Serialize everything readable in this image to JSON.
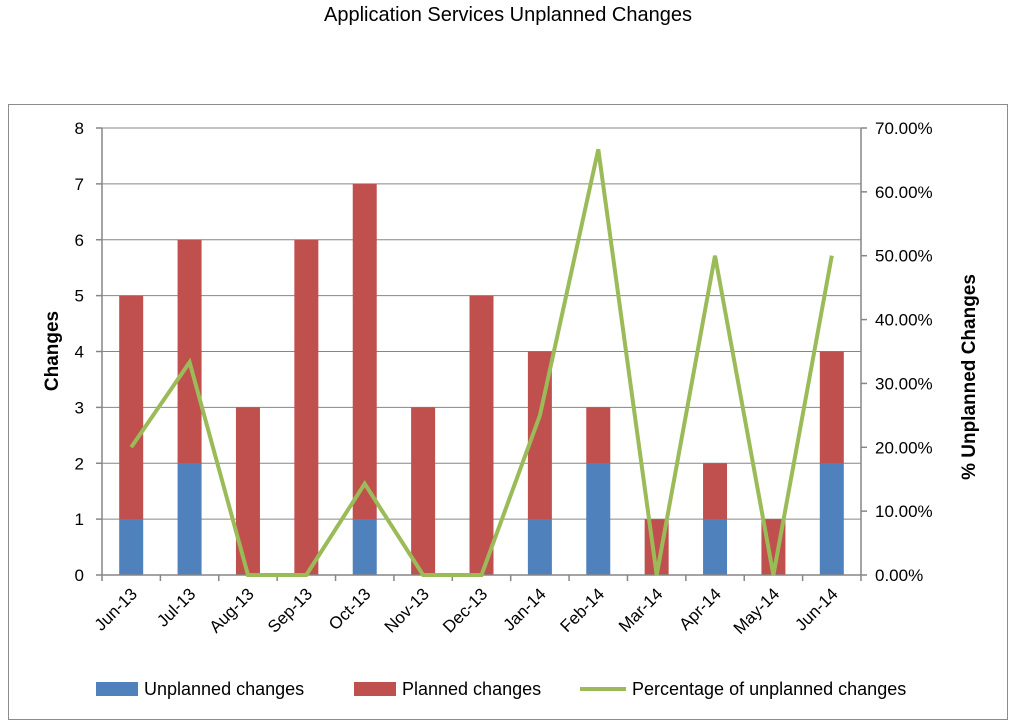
{
  "chart_data": {
    "type": "bar",
    "stacked": true,
    "title": "Application Services Unplanned Changes",
    "xlabel": "",
    "ylabel": "Changes",
    "y2label": "% Unplanned Changes",
    "ylim": [
      0,
      8
    ],
    "y2lim": [
      0,
      0.7
    ],
    "yticks": [
      "0",
      "1",
      "2",
      "3",
      "4",
      "5",
      "6",
      "7",
      "8"
    ],
    "y2ticks": [
      "0.00%",
      "10.00%",
      "20.00%",
      "30.00%",
      "40.00%",
      "50.00%",
      "60.00%",
      "70.00%"
    ],
    "grid": true,
    "legend_position": "bottom",
    "categories": [
      "Jun-13",
      "Jul-13",
      "Aug-13",
      "Sep-13",
      "Oct-13",
      "Nov-13",
      "Dec-13",
      "Jan-14",
      "Feb-14",
      "Mar-14",
      "Apr-14",
      "May-14",
      "Jun-14"
    ],
    "series": [
      {
        "name": "Unplanned changes",
        "type": "bar",
        "axis": "left",
        "color": "#4f81bd",
        "values": [
          1,
          2,
          0,
          0,
          1,
          0,
          0,
          1,
          2,
          0,
          1,
          0,
          2
        ]
      },
      {
        "name": "Planned changes",
        "type": "bar",
        "axis": "left",
        "color": "#c0504d",
        "values": [
          4,
          4,
          3,
          6,
          6,
          3,
          5,
          3,
          1,
          1,
          1,
          1,
          2
        ]
      },
      {
        "name": "Percentage of unplanned changes",
        "type": "line",
        "axis": "right",
        "color": "#9bbb59",
        "values": [
          0.2,
          0.3333,
          0,
          0,
          0.1429,
          0,
          0,
          0.25,
          0.6667,
          0,
          0.5,
          0,
          0.5
        ]
      }
    ],
    "colors": {
      "grid": "#868686",
      "axis": "#868686"
    }
  }
}
